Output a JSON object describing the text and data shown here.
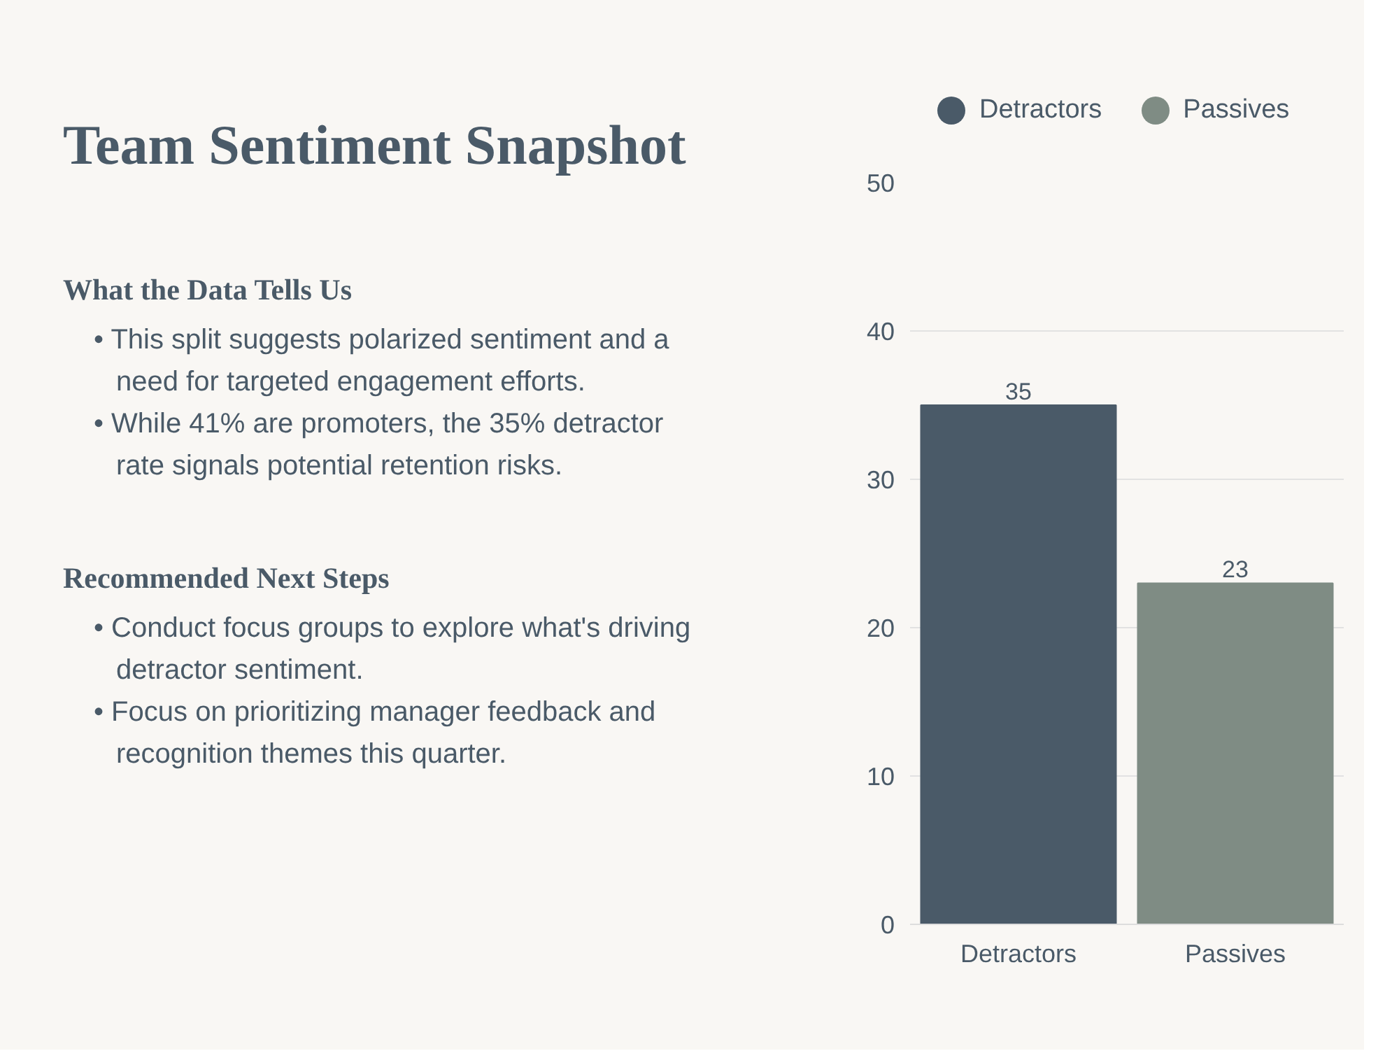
{
  "chart_data": {
    "type": "bar",
    "title": "Team Sentiment Snapshot",
    "annotations": [
      "What the Data Tells Us",
      "• This split suggests polarized sentiment and a need for targeted engagement efforts.",
      "• While 41% are promoters, the 35% detractor rate signals potential retention risks.",
      "Recommended Next Steps",
      "• Conduct focus groups to explore what's driving detractor sentiment.",
      "• Focus on prioritizing manager feedback and recognition themes this quarter."
    ],
    "categories": [
      "Detractors",
      "Passives"
    ],
    "series": [
      {
        "name": "Detractors",
        "color": "#4a5a68",
        "values": [
          35,
          null
        ]
      },
      {
        "name": "Passives",
        "color": "#7f8c84",
        "values": [
          null,
          23
        ]
      }
    ],
    "ylim": [
      0,
      50
    ],
    "yticks": [
      0,
      10,
      20,
      30,
      40,
      50
    ],
    "grid": "y",
    "legend": "top",
    "data_labels": true
  }
}
